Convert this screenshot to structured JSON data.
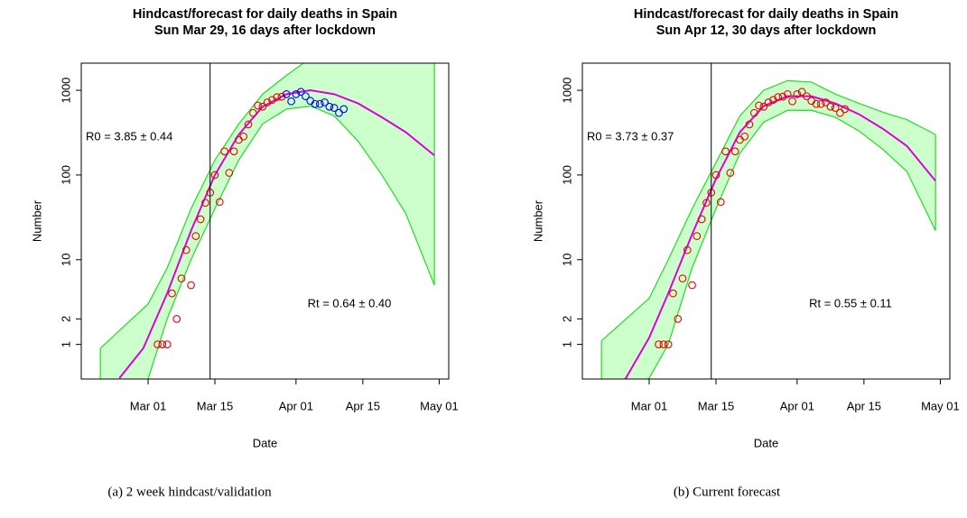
{
  "chart_data": [
    {
      "type": "scatter",
      "title": "Hindcast/forecast for daily deaths in Spain",
      "subtitle": "Sun Mar 29, 16 days after lockdown",
      "xlabel": "Date",
      "ylabel": "Number",
      "caption": "(a) 2 week hindcast/validation",
      "r0_label": "R0 = 3.85 ± 0.44",
      "rt_label": "Rt = 0.64 ± 0.40",
      "xlim": [
        "Feb 16",
        "May 03"
      ],
      "xticks": [
        "Mar 01",
        "Mar 15",
        "Apr 01",
        "Apr 15",
        "May 01"
      ],
      "ylim": [
        0.39,
        2090
      ],
      "yticks": [
        1,
        2,
        10,
        100,
        1000
      ],
      "log_y": true,
      "lockdown": "Mar 14",
      "series": [
        {
          "color": "#ee0000",
          "x": [
            "Mar 03",
            "Mar 04",
            "Mar 05",
            "Mar 06",
            "Mar 07",
            "Mar 08",
            "Mar 09",
            "Mar 10",
            "Mar 11",
            "Mar 12",
            "Mar 13",
            "Mar 14",
            "Mar 15",
            "Mar 16",
            "Mar 17",
            "Mar 18",
            "Mar 19",
            "Mar 20",
            "Mar 21",
            "Mar 22",
            "Mar 23",
            "Mar 24",
            "Mar 25",
            "Mar 26",
            "Mar 27",
            "Mar 28",
            "Mar 29"
          ],
          "values": [
            1,
            1,
            1,
            4,
            2,
            6,
            13,
            5,
            19,
            30,
            47,
            62,
            100,
            48,
            190,
            106,
            190,
            260,
            285,
            395,
            540,
            660,
            640,
            720,
            770,
            830,
            840
          ]
        },
        {
          "color": "#0000ee",
          "x": [
            "Mar 30",
            "Mar 31",
            "Apr 01",
            "Apr 02",
            "Apr 03",
            "Apr 04",
            "Apr 05",
            "Apr 06",
            "Apr 07",
            "Apr 08",
            "Apr 09",
            "Apr 10",
            "Apr 11"
          ],
          "values": [
            900,
            740,
            900,
            960,
            850,
            750,
            690,
            690,
            720,
            640,
            620,
            540,
            600
          ]
        }
      ],
      "fit": {
        "color": "#dd00dd",
        "x": [
          "Feb 24",
          "Feb 29",
          "Mar 05",
          "Mar 10",
          "Mar 15",
          "Mar 20",
          "Mar 25",
          "Mar 30",
          "Apr 04",
          "Apr 09",
          "Apr 14",
          "Apr 19",
          "Apr 24",
          "Apr 30"
        ],
        "values": [
          0.4,
          0.9,
          4,
          22,
          100,
          300,
          640,
          900,
          1000,
          900,
          700,
          480,
          320,
          170
        ]
      },
      "band": {
        "color": "#22dd22",
        "fill": "#ccffcc",
        "x": [
          "Feb 20",
          "Mar 01",
          "Mar 05",
          "Mar 10",
          "Mar 15",
          "Mar 20",
          "Mar 25",
          "Mar 30",
          "Apr 04",
          "Apr 09",
          "Apr 14",
          "Apr 19",
          "Apr 24",
          "Apr 30"
        ],
        "upper": [
          0.9,
          3,
          8,
          40,
          150,
          400,
          900,
          1500,
          2400,
          3000,
          3500,
          4000,
          4500,
          5000
        ],
        "lower": [
          0.1,
          0.39,
          2,
          10,
          40,
          150,
          400,
          600,
          650,
          500,
          250,
          100,
          35,
          5
        ]
      }
    },
    {
      "type": "scatter",
      "title": "Hindcast/forecast for daily deaths in Spain",
      "subtitle": "Sun Apr 12, 30 days after lockdown",
      "xlabel": "Date",
      "ylabel": "Number",
      "caption": "(b) Current forecast",
      "r0_label": "R0 = 3.73 ± 0.37",
      "rt_label": "Rt = 0.55 ± 0.11",
      "xlim": [
        "Feb 16",
        "May 03"
      ],
      "xticks": [
        "Mar 01",
        "Mar 15",
        "Apr 01",
        "Apr 15",
        "May 01"
      ],
      "ylim": [
        0.39,
        2090
      ],
      "yticks": [
        1,
        2,
        10,
        100,
        1000
      ],
      "log_y": true,
      "lockdown": "Mar 14",
      "series": [
        {
          "color": "#ee0000",
          "x": [
            "Mar 03",
            "Mar 04",
            "Mar 05",
            "Mar 06",
            "Mar 07",
            "Mar 08",
            "Mar 09",
            "Mar 10",
            "Mar 11",
            "Mar 12",
            "Mar 13",
            "Mar 14",
            "Mar 15",
            "Mar 16",
            "Mar 17",
            "Mar 18",
            "Mar 19",
            "Mar 20",
            "Mar 21",
            "Mar 22",
            "Mar 23",
            "Mar 24",
            "Mar 25",
            "Mar 26",
            "Mar 27",
            "Mar 28",
            "Mar 29",
            "Mar 30",
            "Mar 31",
            "Apr 01",
            "Apr 02",
            "Apr 03",
            "Apr 04",
            "Apr 05",
            "Apr 06",
            "Apr 07",
            "Apr 08",
            "Apr 09",
            "Apr 10",
            "Apr 11"
          ],
          "values": [
            1,
            1,
            1,
            4,
            2,
            6,
            13,
            5,
            19,
            30,
            47,
            62,
            100,
            48,
            190,
            106,
            190,
            260,
            285,
            395,
            540,
            660,
            640,
            720,
            770,
            830,
            840,
            900,
            740,
            900,
            960,
            850,
            750,
            690,
            690,
            720,
            640,
            620,
            540,
            600
          ]
        }
      ],
      "fit": {
        "color": "#dd00dd",
        "x": [
          "Feb 25",
          "Mar 01",
          "Mar 05",
          "Mar 10",
          "Mar 15",
          "Mar 20",
          "Mar 25",
          "Mar 30",
          "Apr 04",
          "Apr 09",
          "Apr 14",
          "Apr 19",
          "Apr 24",
          "Apr 30"
        ],
        "values": [
          0.39,
          1.2,
          4,
          20,
          90,
          320,
          650,
          850,
          850,
          700,
          520,
          350,
          220,
          85
        ]
      },
      "band": {
        "color": "#22dd22",
        "fill": "#ccffcc",
        "x": [
          "Feb 20",
          "Mar 01",
          "Mar 05",
          "Mar 10",
          "Mar 15",
          "Mar 20",
          "Mar 25",
          "Mar 30",
          "Apr 04",
          "Apr 09",
          "Apr 14",
          "Apr 19",
          "Apr 24",
          "Apr 30"
        ],
        "upper": [
          1.1,
          3.5,
          10,
          40,
          140,
          500,
          1000,
          1300,
          1250,
          900,
          700,
          550,
          450,
          300
        ],
        "lower": [
          0.2,
          0.4,
          1,
          8,
          40,
          180,
          420,
          580,
          580,
          480,
          330,
          200,
          110,
          22
        ]
      }
    }
  ]
}
